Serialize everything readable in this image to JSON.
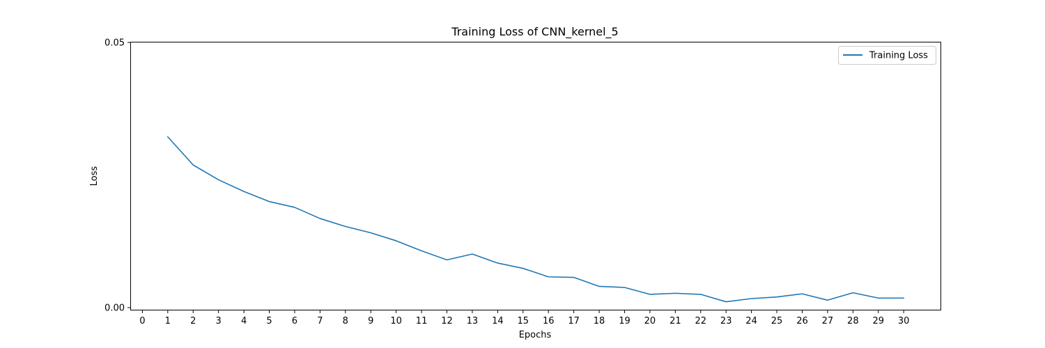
{
  "chart_data": {
    "type": "line",
    "title": "Training Loss of CNN_kernel_5",
    "xlabel": "Epochs",
    "ylabel": "Loss",
    "xlim": [
      -0.45,
      31.45
    ],
    "ylim": [
      -0.0004,
      0.05
    ],
    "xticks": [
      0,
      1,
      2,
      3,
      4,
      5,
      6,
      7,
      8,
      9,
      10,
      11,
      12,
      13,
      14,
      15,
      16,
      17,
      18,
      19,
      20,
      21,
      22,
      23,
      24,
      25,
      26,
      27,
      28,
      29,
      30
    ],
    "yticks": [
      0.0,
      0.05
    ],
    "ytick_labels": [
      "0.00",
      "0.05"
    ],
    "grid": false,
    "legend": "top-right",
    "series": [
      {
        "name": "Training Loss",
        "color": "#1f77b4",
        "x": [
          1,
          2,
          3,
          4,
          5,
          6,
          7,
          8,
          9,
          10,
          11,
          12,
          13,
          14,
          15,
          16,
          17,
          18,
          19,
          20,
          21,
          22,
          23,
          24,
          25,
          26,
          27,
          28,
          29,
          30
        ],
        "y": [
          0.0322,
          0.0269,
          0.0241,
          0.0219,
          0.02,
          0.0189,
          0.0168,
          0.0153,
          0.0141,
          0.0126,
          0.0107,
          0.009,
          0.0101,
          0.0084,
          0.0074,
          0.0058,
          0.0057,
          0.004,
          0.0038,
          0.0025,
          0.0027,
          0.0025,
          0.0011,
          0.0017,
          0.002,
          0.0026,
          0.0014,
          0.0028,
          0.0018,
          0.0018
        ]
      }
    ]
  }
}
